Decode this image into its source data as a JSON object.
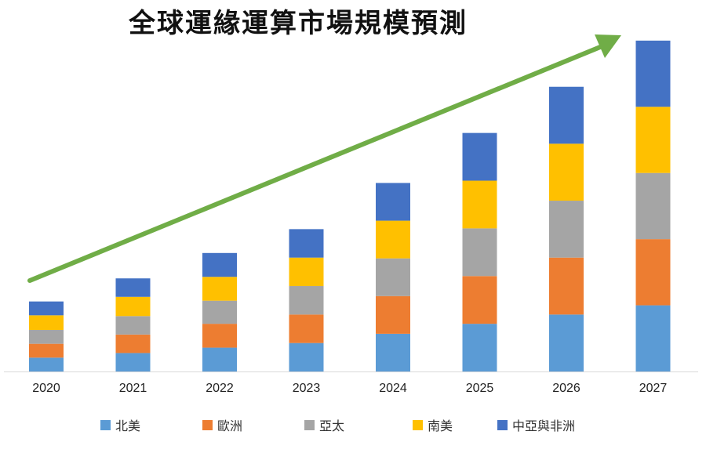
{
  "chart_data": {
    "type": "bar",
    "stacked": true,
    "title": "全球運緣運算市場規模預測",
    "categories": [
      "2020",
      "2021",
      "2022",
      "2023",
      "2024",
      "2025",
      "2026",
      "2027"
    ],
    "series": [
      {
        "name": "北美",
        "color": "#5B9BD5",
        "values": [
          18,
          24,
          31,
          37,
          49,
          62,
          74,
          86
        ]
      },
      {
        "name": "歐洲",
        "color": "#ED7D31",
        "values": [
          18,
          24,
          31,
          37,
          49,
          62,
          74,
          86
        ]
      },
      {
        "name": "亞太",
        "color": "#A5A5A5",
        "values": [
          18,
          24,
          30,
          37,
          49,
          62,
          74,
          86
        ]
      },
      {
        "name": "南美",
        "color": "#FFC000",
        "values": [
          19,
          25,
          31,
          37,
          49,
          62,
          74,
          86
        ]
      },
      {
        "name": "中亞與非洲",
        "color": "#4472C4",
        "values": [
          18,
          24,
          31,
          37,
          49,
          62,
          74,
          86
        ]
      }
    ],
    "ylim": [
      0,
      440
    ],
    "grid": false,
    "legend_position": "bottom",
    "trend_arrow": {
      "color": "#70AD47",
      "direction": "upward"
    }
  }
}
